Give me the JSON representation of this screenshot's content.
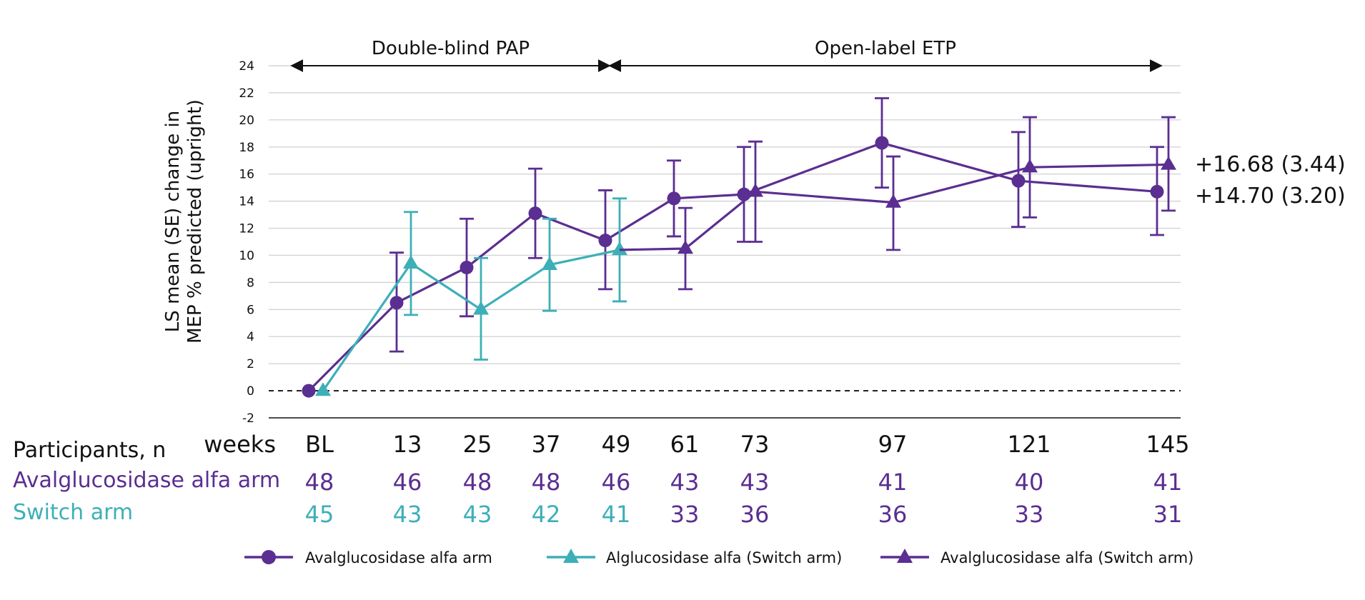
{
  "chart_data": {
    "type": "line",
    "ylabel_lines": [
      "LS mean (SE) change in",
      "MEP % predicted (upright)"
    ],
    "ylim": [
      -2,
      24
    ],
    "yticks": [
      -2,
      0,
      2,
      4,
      6,
      8,
      10,
      12,
      14,
      16,
      18,
      20,
      22,
      24
    ],
    "grid": true,
    "x_weeks": [
      0,
      13,
      25,
      37,
      49,
      61,
      73,
      97,
      121,
      145
    ],
    "x_tick_labels": [
      "BL",
      "13",
      "25",
      "37",
      "49",
      "61",
      "73",
      "97",
      "121",
      "145"
    ],
    "x_unit_label": "weeks",
    "phases": [
      {
        "label": "Double-blind PAP",
        "from_week": 0,
        "to_week": 49
      },
      {
        "label": "Open-label ETP",
        "from_week": 49,
        "to_week": 145
      }
    ],
    "series": [
      {
        "name": "Avalglucosidase alfa arm",
        "color": "#5b2e91",
        "marker": "circle",
        "x": [
          0,
          13,
          25,
          37,
          49,
          61,
          73,
          97,
          121,
          145
        ],
        "y": [
          0,
          6.5,
          9.1,
          13.1,
          11.1,
          14.2,
          14.5,
          18.3,
          15.5,
          14.7
        ],
        "se_low": [
          null,
          2.9,
          5.5,
          9.8,
          7.5,
          11.4,
          11.0,
          15.0,
          12.1,
          11.5
        ],
        "se_high": [
          null,
          10.2,
          12.7,
          16.4,
          14.8,
          17.0,
          18.0,
          21.6,
          19.1,
          18.0
        ]
      },
      {
        "name": "Alglucosidase alfa (Switch arm)",
        "color": "#3dafb8",
        "marker": "triangle",
        "x": [
          0,
          13,
          25,
          37,
          49
        ],
        "y": [
          0,
          9.4,
          6.0,
          9.3,
          10.4
        ],
        "se_low": [
          null,
          5.6,
          2.3,
          5.9,
          6.6
        ],
        "se_high": [
          null,
          13.2,
          9.8,
          12.7,
          14.2
        ]
      },
      {
        "name": "Avalglucosidase alfa (Switch arm)",
        "color": "#5b2e91",
        "marker": "triangle",
        "x": [
          49,
          61,
          73,
          97,
          121,
          145
        ],
        "y": [
          10.4,
          10.5,
          14.7,
          13.9,
          16.5,
          16.7
        ],
        "se_low": [
          null,
          7.5,
          11.0,
          10.4,
          12.8,
          13.3
        ],
        "se_high": [
          null,
          13.5,
          18.4,
          17.3,
          20.2,
          20.2
        ]
      }
    ],
    "end_labels": [
      "+16.68 (3.44)",
      "+14.70 (3.20)"
    ]
  },
  "participants": {
    "header": "Participants, n",
    "rows": [
      {
        "label": "Avalglucosidase alfa arm",
        "color": "#5b2e91",
        "counts": [
          "48",
          "46",
          "48",
          "48",
          "46",
          "43",
          "43",
          "41",
          "40",
          "41"
        ],
        "colors": [
          "#5b2e91",
          "#5b2e91",
          "#5b2e91",
          "#5b2e91",
          "#5b2e91",
          "#5b2e91",
          "#5b2e91",
          "#5b2e91",
          "#5b2e91",
          "#5b2e91"
        ]
      },
      {
        "label": "Switch arm",
        "color": "#3dafb8",
        "counts": [
          "45",
          "43",
          "43",
          "42",
          "41",
          "33",
          "36",
          "36",
          "33",
          "31"
        ],
        "colors": [
          "#3dafb8",
          "#3dafb8",
          "#3dafb8",
          "#3dafb8",
          "#3dafb8",
          "#5b2e91",
          "#5b2e91",
          "#5b2e91",
          "#5b2e91",
          "#5b2e91"
        ]
      }
    ]
  }
}
